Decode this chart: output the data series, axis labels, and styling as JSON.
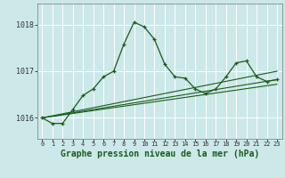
{
  "background_color": "#cce8e8",
  "grid_color": "#ffffff",
  "line_color": "#1a5c1a",
  "xlabel": "Graphe pression niveau de la mer (hPa)",
  "xlabel_fontsize": 7.0,
  "ylim": [
    1015.55,
    1018.45
  ],
  "xlim": [
    -0.5,
    23.5
  ],
  "yticks": [
    1016,
    1017,
    1018
  ],
  "xticks": [
    0,
    1,
    2,
    3,
    4,
    5,
    6,
    7,
    8,
    9,
    10,
    11,
    12,
    13,
    14,
    15,
    16,
    17,
    18,
    19,
    20,
    21,
    22,
    23
  ],
  "series1_x": [
    0,
    1,
    2,
    3,
    4,
    5,
    6,
    7,
    8,
    9,
    10,
    11,
    12,
    13,
    14,
    15,
    16,
    17,
    18,
    19,
    20,
    21,
    22,
    23
  ],
  "series1_y": [
    1016.0,
    1015.88,
    1015.88,
    1016.18,
    1016.48,
    1016.62,
    1016.88,
    1017.0,
    1017.58,
    1018.05,
    1017.95,
    1017.68,
    1017.15,
    1016.88,
    1016.85,
    1016.62,
    1016.52,
    1016.62,
    1016.88,
    1017.18,
    1017.22,
    1016.88,
    1016.78,
    1016.82
  ],
  "series2_x": [
    0,
    23
  ],
  "series2_y": [
    1016.0,
    1016.82
  ],
  "series3_x": [
    0,
    23
  ],
  "series3_y": [
    1016.0,
    1016.72
  ],
  "series4_x": [
    0,
    23
  ],
  "series4_y": [
    1016.0,
    1017.0
  ]
}
